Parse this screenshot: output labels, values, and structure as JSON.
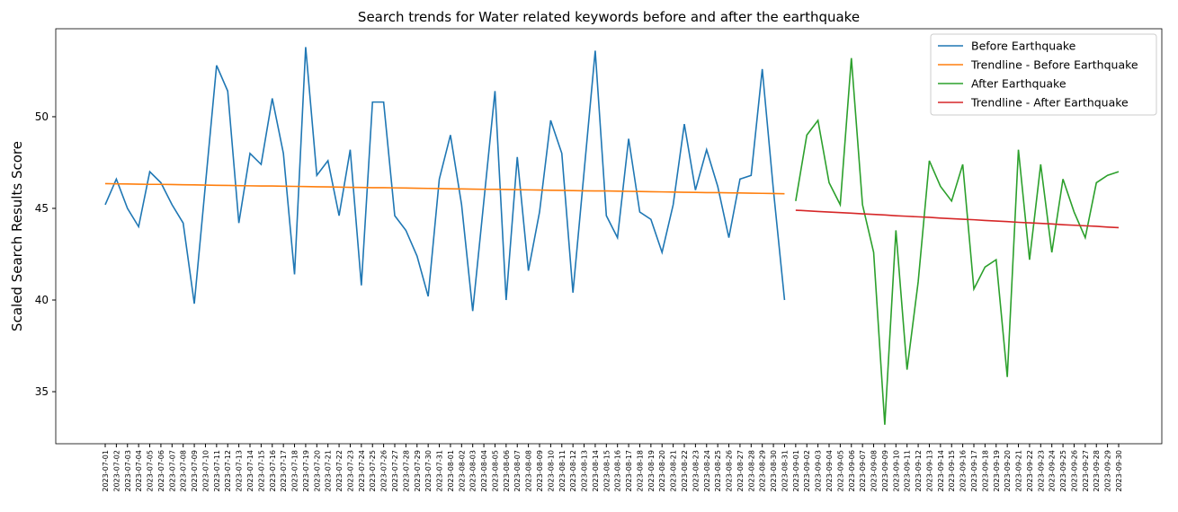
{
  "chart_data": {
    "type": "line",
    "title": "Search trends for Water related keywords before and after the earthquake",
    "ylabel": "Scaled Search Results Score",
    "categories": [
      "2023-07-01",
      "2023-07-02",
      "2023-07-03",
      "2023-07-04",
      "2023-07-05",
      "2023-07-06",
      "2023-07-07",
      "2023-07-08",
      "2023-07-09",
      "2023-07-10",
      "2023-07-11",
      "2023-07-12",
      "2023-07-13",
      "2023-07-14",
      "2023-07-15",
      "2023-07-16",
      "2023-07-17",
      "2023-07-18",
      "2023-07-19",
      "2023-07-20",
      "2023-07-21",
      "2023-07-22",
      "2023-07-23",
      "2023-07-24",
      "2023-07-25",
      "2023-07-26",
      "2023-07-27",
      "2023-07-28",
      "2023-07-29",
      "2023-07-30",
      "2023-07-31",
      "2023-08-01",
      "2023-08-02",
      "2023-08-03",
      "2023-08-04",
      "2023-08-05",
      "2023-08-06",
      "2023-08-07",
      "2023-08-08",
      "2023-08-09",
      "2023-08-10",
      "2023-08-11",
      "2023-08-12",
      "2023-08-13",
      "2023-08-14",
      "2023-08-15",
      "2023-08-16",
      "2023-08-17",
      "2023-08-18",
      "2023-08-19",
      "2023-08-20",
      "2023-08-21",
      "2023-08-22",
      "2023-08-23",
      "2023-08-24",
      "2023-08-25",
      "2023-08-26",
      "2023-08-27",
      "2023-08-28",
      "2023-08-29",
      "2023-08-30",
      "2023-08-31",
      "2023-09-01",
      "2023-09-02",
      "2023-09-03",
      "2023-09-04",
      "2023-09-05",
      "2023-09-06",
      "2023-09-07",
      "2023-09-08",
      "2023-09-09",
      "2023-09-10",
      "2023-09-11",
      "2023-09-12",
      "2023-09-13",
      "2023-09-14",
      "2023-09-15",
      "2023-09-16",
      "2023-09-17",
      "2023-09-18",
      "2023-09-19",
      "2023-09-20",
      "2023-09-21",
      "2023-09-22",
      "2023-09-23",
      "2023-09-24",
      "2023-09-25",
      "2023-09-26",
      "2023-09-27",
      "2023-09-28",
      "2023-09-29",
      "2023-09-30"
    ],
    "series": [
      {
        "name": "Before Earthquake",
        "color": "#1f77b4",
        "values": [
          45.2,
          46.6,
          45.0,
          44.0,
          47.0,
          46.4,
          45.2,
          44.2,
          39.8,
          46.3,
          52.8,
          51.4,
          44.2,
          48.0,
          47.4,
          51.0,
          48.0,
          41.4,
          53.8,
          46.8,
          47.6,
          44.6,
          48.2,
          40.8,
          50.8,
          50.8,
          44.6,
          43.8,
          42.4,
          40.2,
          46.6,
          49.0,
          45.2,
          39.4,
          45.4,
          51.4,
          40.0,
          47.8,
          41.6,
          44.8,
          49.8,
          48.0,
          40.4,
          47.0,
          53.6,
          44.6,
          43.4,
          48.8,
          44.8,
          44.4,
          42.6,
          45.2,
          49.6,
          46.0,
          48.2,
          46.2,
          43.4,
          46.6,
          46.8,
          52.6,
          46.0,
          40.0,
          null,
          null,
          null,
          null,
          null,
          null,
          null,
          null,
          null,
          null,
          null,
          null,
          null,
          null,
          null,
          null,
          null,
          null,
          null,
          null,
          null,
          null,
          null,
          null,
          null,
          null,
          null,
          null,
          null,
          null
        ]
      },
      {
        "name": "Trendline - Before Earthquake",
        "color": "#ff7f0e",
        "values": [
          46.35,
          46.34,
          46.33,
          46.32,
          46.31,
          46.31,
          46.3,
          46.29,
          46.28,
          46.27,
          46.26,
          46.25,
          46.24,
          46.23,
          46.22,
          46.22,
          46.21,
          46.2,
          46.19,
          46.18,
          46.17,
          46.16,
          46.15,
          46.14,
          46.13,
          46.13,
          46.12,
          46.11,
          46.1,
          46.09,
          46.08,
          46.07,
          46.06,
          46.05,
          46.04,
          46.04,
          46.03,
          46.02,
          46.01,
          46.0,
          45.99,
          45.98,
          45.97,
          45.96,
          45.95,
          45.95,
          45.94,
          45.93,
          45.92,
          45.91,
          45.9,
          45.89,
          45.88,
          45.87,
          45.86,
          45.86,
          45.85,
          45.84,
          45.83,
          45.82,
          45.81,
          45.8,
          null,
          null,
          null,
          null,
          null,
          null,
          null,
          null,
          null,
          null,
          null,
          null,
          null,
          null,
          null,
          null,
          null,
          null,
          null,
          null,
          null,
          null,
          null,
          null,
          null,
          null,
          null,
          null,
          null,
          null
        ]
      },
      {
        "name": "After Earthquake",
        "color": "#2ca02c",
        "values": [
          null,
          null,
          null,
          null,
          null,
          null,
          null,
          null,
          null,
          null,
          null,
          null,
          null,
          null,
          null,
          null,
          null,
          null,
          null,
          null,
          null,
          null,
          null,
          null,
          null,
          null,
          null,
          null,
          null,
          null,
          null,
          null,
          null,
          null,
          null,
          null,
          null,
          null,
          null,
          null,
          null,
          null,
          null,
          null,
          null,
          null,
          null,
          null,
          null,
          null,
          null,
          null,
          null,
          null,
          null,
          null,
          null,
          null,
          null,
          null,
          null,
          null,
          45.4,
          49.0,
          49.8,
          46.4,
          45.2,
          53.2,
          45.2,
          42.6,
          33.2,
          43.8,
          36.2,
          41.0,
          47.6,
          46.2,
          45.4,
          47.4,
          40.6,
          41.8,
          42.2,
          35.8,
          48.2,
          42.2,
          47.4,
          42.6,
          46.6,
          44.8,
          43.4,
          46.4,
          46.8,
          47.0
        ]
      },
      {
        "name": "Trendline - After Earthquake",
        "color": "#d62728",
        "values": [
          null,
          null,
          null,
          null,
          null,
          null,
          null,
          null,
          null,
          null,
          null,
          null,
          null,
          null,
          null,
          null,
          null,
          null,
          null,
          null,
          null,
          null,
          null,
          null,
          null,
          null,
          null,
          null,
          null,
          null,
          null,
          null,
          null,
          null,
          null,
          null,
          null,
          null,
          null,
          null,
          null,
          null,
          null,
          null,
          null,
          null,
          null,
          null,
          null,
          null,
          null,
          null,
          null,
          null,
          null,
          null,
          null,
          null,
          null,
          null,
          null,
          null,
          44.9,
          44.87,
          44.83,
          44.8,
          44.77,
          44.74,
          44.7,
          44.67,
          44.64,
          44.6,
          44.57,
          44.54,
          44.51,
          44.47,
          44.44,
          44.41,
          44.38,
          44.34,
          44.31,
          44.28,
          44.24,
          44.21,
          44.18,
          44.15,
          44.11,
          44.08,
          44.05,
          44.02,
          43.98,
          43.95
        ]
      }
    ],
    "ylim": [
      32.16,
      54.8
    ],
    "yticks": [
      35,
      40,
      45,
      50
    ],
    "legend": "upper right"
  }
}
